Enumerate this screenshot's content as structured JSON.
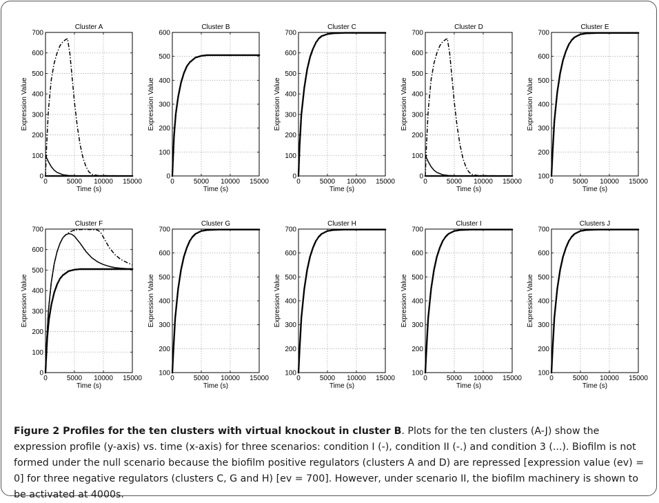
{
  "figure": {
    "caption_title": "Figure 2 Profiles for the ten clusters with virtual knockout in cluster B",
    "caption_body": ". Plots for the ten clusters (A-J) show the expression profile (y-axis) vs. time (x-axis) for three scenarios: condition I (-), condition II (-.) and condition 3 (...). Biofilm is not formed under the null scenario because the biofilm positive regulators (clusters A and D) are repressed [expression value (ev) = 0] for three negative regulators (clusters C, G and H) [ev = 700]. However, under scenario II, the biofilm machinery is shown to be activated at 4000s."
  },
  "colors": {
    "line": "#000000",
    "grid": "#9a9a9a",
    "axis": "#000000"
  },
  "chart_data": [
    {
      "type": "line",
      "title": "Cluster A",
      "xlabel": "Time (s)",
      "ylabel": "Expression Value",
      "xlim": [
        0,
        15000
      ],
      "ylim": [
        0,
        700
      ],
      "xticks": [
        0,
        5000,
        10000,
        15000
      ],
      "yticks": [
        0,
        100,
        200,
        300,
        400,
        500,
        600,
        700
      ],
      "grid": true,
      "series": [
        {
          "style": "solid",
          "x": [
            0,
            500,
            1000,
            1500,
            2000,
            3000,
            4000,
            6000,
            10000,
            15000
          ],
          "y": [
            100,
            70,
            45,
            28,
            17,
            6,
            2,
            0,
            0,
            0
          ]
        },
        {
          "style": "dashdot",
          "x": [
            0,
            200,
            500,
            1000,
            1500,
            2000,
            2500,
            3000,
            3500,
            3800,
            4200,
            4600,
            5000,
            5500,
            6000,
            6500,
            7000,
            7500,
            8000,
            9000,
            15000
          ],
          "y": [
            0,
            150,
            320,
            470,
            550,
            600,
            635,
            655,
            665,
            670,
            600,
            480,
            360,
            240,
            150,
            85,
            45,
            20,
            8,
            2,
            0
          ]
        },
        {
          "style": "dotted",
          "x": [
            0,
            15000
          ],
          "y": [
            0,
            0
          ]
        }
      ]
    },
    {
      "type": "line",
      "title": "Cluster B",
      "xlabel": "Time (s)",
      "ylabel": "Expression Value",
      "xlim": [
        0,
        15000
      ],
      "ylim": [
        0,
        600
      ],
      "xticks": [
        0,
        5000,
        10000,
        15000
      ],
      "yticks": [
        0,
        100,
        200,
        300,
        400,
        500,
        600
      ],
      "grid": true,
      "series": [
        {
          "style": "solid",
          "x": [
            0,
            100,
            300,
            600,
            1000,
            1500,
            2000,
            2500,
            3000,
            4000,
            5000,
            6000,
            8000,
            10000,
            15000
          ],
          "y": [
            0,
            60,
            170,
            260,
            330,
            390,
            430,
            458,
            475,
            495,
            502,
            505,
            505,
            505,
            505
          ]
        },
        {
          "style": "dotted",
          "x": [
            0,
            100,
            300,
            600,
            1000,
            1500,
            2000,
            2500,
            3000,
            4000,
            5000,
            6000,
            8000,
            10000,
            15000
          ],
          "y": [
            0,
            60,
            170,
            260,
            330,
            390,
            430,
            458,
            475,
            495,
            502,
            505,
            505,
            505,
            505
          ]
        }
      ]
    },
    {
      "type": "line",
      "title": "Cluster C",
      "xlabel": "Time (s)",
      "ylabel": "Expression Value",
      "xlim": [
        0,
        15000
      ],
      "ylim": [
        0,
        700
      ],
      "xticks": [
        0,
        5000,
        10000,
        15000
      ],
      "yticks": [
        0,
        100,
        200,
        300,
        400,
        500,
        600,
        700
      ],
      "grid": true,
      "series": [
        {
          "style": "solid",
          "x": [
            0,
            200,
            500,
            1000,
            1500,
            2000,
            2500,
            3000,
            3500,
            4000,
            5000,
            6000,
            8000,
            15000
          ],
          "y": [
            0,
            150,
            300,
            430,
            520,
            580,
            620,
            650,
            670,
            682,
            692,
            696,
            698,
            698
          ]
        },
        {
          "style": "dotted",
          "x": [
            0,
            200,
            500,
            1000,
            1500,
            2000,
            2500,
            3000,
            3500,
            4000,
            5000,
            6000,
            8000,
            15000
          ],
          "y": [
            0,
            150,
            300,
            430,
            520,
            580,
            620,
            650,
            670,
            682,
            692,
            696,
            698,
            698
          ]
        }
      ]
    },
    {
      "type": "line",
      "title": "Cluster D",
      "xlabel": "Time (s)",
      "ylabel": "Expression Value",
      "xlim": [
        0,
        15000
      ],
      "ylim": [
        0,
        700
      ],
      "xticks": [
        0,
        5000,
        10000,
        15000
      ],
      "yticks": [
        0,
        100,
        200,
        300,
        400,
        500,
        600,
        700
      ],
      "grid": true,
      "series": [
        {
          "style": "solid",
          "x": [
            0,
            500,
            1000,
            1500,
            2000,
            3000,
            4000,
            6000,
            10000,
            15000
          ],
          "y": [
            100,
            70,
            45,
            28,
            17,
            6,
            2,
            0,
            0,
            0
          ]
        },
        {
          "style": "dashdot",
          "x": [
            0,
            200,
            500,
            1000,
            1500,
            2000,
            2500,
            3000,
            3500,
            3800,
            4200,
            4600,
            5000,
            5500,
            6000,
            6500,
            7000,
            7500,
            8000,
            9000,
            15000
          ],
          "y": [
            0,
            150,
            320,
            470,
            550,
            600,
            635,
            655,
            665,
            670,
            600,
            480,
            360,
            240,
            150,
            85,
            45,
            20,
            8,
            2,
            0
          ]
        },
        {
          "style": "dotted",
          "x": [
            0,
            15000
          ],
          "y": [
            0,
            0
          ]
        }
      ]
    },
    {
      "type": "line",
      "title": "Cluster E",
      "xlabel": "Time (s)",
      "ylabel": "Expression Value",
      "xlim": [
        0,
        15000
      ],
      "ylim": [
        100,
        700
      ],
      "xticks": [
        0,
        5000,
        10000,
        15000
      ],
      "yticks": [
        100,
        200,
        300,
        400,
        500,
        600,
        700
      ],
      "grid": true,
      "series": [
        {
          "style": "solid",
          "x": [
            0,
            200,
            500,
            1000,
            1500,
            2000,
            2500,
            3000,
            3500,
            4000,
            5000,
            6000,
            8000,
            15000
          ],
          "y": [
            100,
            200,
            330,
            450,
            530,
            585,
            622,
            650,
            668,
            680,
            692,
            696,
            698,
            698
          ]
        },
        {
          "style": "dotted",
          "x": [
            0,
            200,
            500,
            1000,
            1500,
            2000,
            2500,
            3000,
            3500,
            4000,
            5000,
            6000,
            8000,
            15000
          ],
          "y": [
            100,
            200,
            330,
            450,
            530,
            585,
            622,
            650,
            668,
            680,
            692,
            696,
            698,
            698
          ]
        }
      ]
    },
    {
      "type": "line",
      "title": "Cluster F",
      "xlabel": "Time (s)",
      "ylabel": "Expression Value",
      "xlim": [
        0,
        15000
      ],
      "ylim": [
        0,
        700
      ],
      "xticks": [
        0,
        5000,
        10000,
        15000
      ],
      "yticks": [
        0,
        100,
        200,
        300,
        400,
        500,
        600,
        700
      ],
      "grid": true,
      "series": [
        {
          "style": "solid",
          "x": [
            0,
            200,
            500,
            1000,
            1500,
            2000,
            2500,
            3000,
            3500,
            4000,
            4500,
            5000,
            6000,
            7000,
            8000,
            9000,
            10000,
            11000,
            12000,
            13000,
            14000,
            15000
          ],
          "y": [
            0,
            150,
            300,
            440,
            530,
            590,
            630,
            658,
            672,
            678,
            675,
            665,
            630,
            590,
            560,
            540,
            527,
            518,
            512,
            509,
            507,
            506
          ]
        },
        {
          "style": "dashdot",
          "x": [
            0,
            200,
            500,
            1000,
            1500,
            2000,
            2500,
            3000,
            3500,
            4000,
            4500,
            5000,
            6000,
            7000,
            8000,
            9000,
            9500,
            10000,
            11000,
            12000,
            13000,
            14000,
            15000
          ],
          "y": [
            0,
            150,
            300,
            440,
            530,
            590,
            630,
            658,
            672,
            682,
            690,
            695,
            698,
            698,
            698,
            695,
            685,
            660,
            610,
            575,
            552,
            538,
            525
          ]
        },
        {
          "style": "solid",
          "x": [
            0,
            100,
            300,
            600,
            1000,
            1500,
            2000,
            2500,
            3000,
            4000,
            5000,
            6000,
            8000,
            10000,
            15000
          ],
          "y": [
            0,
            60,
            170,
            260,
            330,
            390,
            430,
            458,
            475,
            495,
            502,
            505,
            505,
            505,
            505
          ]
        },
        {
          "style": "dotted",
          "x": [
            0,
            100,
            300,
            600,
            1000,
            1500,
            2000,
            2500,
            3000,
            4000,
            5000,
            6000,
            8000,
            10000,
            15000
          ],
          "y": [
            0,
            60,
            170,
            260,
            330,
            390,
            430,
            458,
            475,
            495,
            502,
            505,
            505,
            505,
            505
          ]
        }
      ]
    },
    {
      "type": "line",
      "title": "Cluster G",
      "xlabel": "Time (s)",
      "ylabel": "Expression Value",
      "xlim": [
        0,
        15000
      ],
      "ylim": [
        100,
        700
      ],
      "xticks": [
        0,
        5000,
        10000,
        15000
      ],
      "yticks": [
        100,
        200,
        300,
        400,
        500,
        600,
        700
      ],
      "grid": true,
      "series": [
        {
          "style": "solid",
          "x": [
            0,
            200,
            500,
            1000,
            1500,
            2000,
            2500,
            3000,
            3500,
            4000,
            5000,
            6000,
            8000,
            15000
          ],
          "y": [
            100,
            200,
            330,
            450,
            530,
            585,
            622,
            650,
            668,
            680,
            692,
            696,
            698,
            698
          ]
        },
        {
          "style": "dotted",
          "x": [
            0,
            200,
            500,
            1000,
            1500,
            2000,
            2500,
            3000,
            3500,
            4000,
            5000,
            6000,
            8000,
            15000
          ],
          "y": [
            100,
            200,
            330,
            450,
            530,
            585,
            622,
            650,
            668,
            680,
            692,
            696,
            698,
            698
          ]
        }
      ]
    },
    {
      "type": "line",
      "title": "Cluster H",
      "xlabel": "Time (s)",
      "ylabel": "Expression Value",
      "xlim": [
        0,
        15000
      ],
      "ylim": [
        100,
        700
      ],
      "xticks": [
        0,
        5000,
        10000,
        15000
      ],
      "yticks": [
        100,
        200,
        300,
        400,
        500,
        600,
        700
      ],
      "grid": true,
      "series": [
        {
          "style": "solid",
          "x": [
            0,
            200,
            500,
            1000,
            1500,
            2000,
            2500,
            3000,
            3500,
            4000,
            5000,
            6000,
            8000,
            15000
          ],
          "y": [
            100,
            200,
            330,
            450,
            530,
            585,
            622,
            650,
            668,
            680,
            692,
            696,
            698,
            698
          ]
        },
        {
          "style": "dotted",
          "x": [
            0,
            200,
            500,
            1000,
            1500,
            2000,
            2500,
            3000,
            3500,
            4000,
            5000,
            6000,
            8000,
            15000
          ],
          "y": [
            100,
            200,
            330,
            450,
            530,
            585,
            622,
            650,
            668,
            680,
            692,
            696,
            698,
            698
          ]
        }
      ]
    },
    {
      "type": "line",
      "title": "Cluster I",
      "xlabel": "Time (s)",
      "ylabel": "Expression Value",
      "xlim": [
        0,
        15000
      ],
      "ylim": [
        100,
        700
      ],
      "xticks": [
        0,
        5000,
        10000,
        15000
      ],
      "yticks": [
        100,
        200,
        300,
        400,
        500,
        600,
        700
      ],
      "grid": true,
      "series": [
        {
          "style": "solid",
          "x": [
            0,
            200,
            500,
            1000,
            1500,
            2000,
            2500,
            3000,
            3500,
            4000,
            5000,
            6000,
            8000,
            15000
          ],
          "y": [
            100,
            200,
            330,
            450,
            530,
            585,
            622,
            650,
            668,
            680,
            692,
            696,
            698,
            698
          ]
        },
        {
          "style": "dotted",
          "x": [
            0,
            200,
            500,
            1000,
            1500,
            2000,
            2500,
            3000,
            3500,
            4000,
            5000,
            6000,
            8000,
            15000
          ],
          "y": [
            100,
            200,
            330,
            450,
            530,
            585,
            622,
            650,
            668,
            680,
            692,
            696,
            698,
            698
          ]
        }
      ]
    },
    {
      "type": "line",
      "title": "Clusters J",
      "xlabel": "Time (s)",
      "ylabel": "Expression Value",
      "xlim": [
        0,
        15000
      ],
      "ylim": [
        100,
        700
      ],
      "xticks": [
        0,
        5000,
        10000,
        15000
      ],
      "yticks": [
        100,
        200,
        300,
        400,
        500,
        600,
        700
      ],
      "grid": true,
      "series": [
        {
          "style": "solid",
          "x": [
            0,
            200,
            500,
            1000,
            1500,
            2000,
            2500,
            3000,
            3500,
            4000,
            5000,
            6000,
            8000,
            15000
          ],
          "y": [
            100,
            200,
            330,
            450,
            530,
            585,
            622,
            650,
            668,
            680,
            692,
            696,
            698,
            698
          ]
        },
        {
          "style": "dotted",
          "x": [
            0,
            200,
            500,
            1000,
            1500,
            2000,
            2500,
            3000,
            3500,
            4000,
            5000,
            6000,
            8000,
            15000
          ],
          "y": [
            100,
            200,
            330,
            450,
            530,
            585,
            622,
            650,
            668,
            680,
            692,
            696,
            698,
            698
          ]
        }
      ]
    }
  ]
}
